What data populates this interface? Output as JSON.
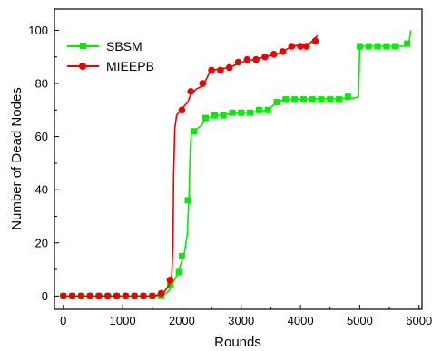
{
  "chart_data": {
    "type": "line",
    "title": "",
    "xlabel": "Rounds",
    "ylabel": "Number of Dead Nodes",
    "xlim": [
      -150,
      6050
    ],
    "ylim": [
      -5,
      108
    ],
    "x_ticks": [
      0,
      1000,
      2000,
      3000,
      4000,
      5000,
      6000
    ],
    "y_ticks": [
      0,
      20,
      40,
      60,
      80,
      100
    ],
    "x_tick_labels": [
      "0",
      "1000",
      "2000",
      "3000",
      "4000",
      "5000",
      "6000"
    ],
    "y_tick_labels": [
      "0",
      "20",
      "40",
      "60",
      "80",
      "100"
    ],
    "grid": false,
    "legend_position": "top-left",
    "series": [
      {
        "name": "SBSM",
        "color": "#00ee00",
        "marker": "square",
        "line": [
          [
            0,
            0
          ],
          [
            1600,
            0
          ],
          [
            1700,
            0.5
          ],
          [
            1780,
            2
          ],
          [
            1850,
            5
          ],
          [
            1920,
            8
          ],
          [
            1980,
            12
          ],
          [
            2040,
            16
          ],
          [
            2090,
            23
          ],
          [
            2120,
            38
          ],
          [
            2140,
            55
          ],
          [
            2160,
            62
          ],
          [
            2260,
            63
          ],
          [
            2320,
            64
          ],
          [
            2380,
            66
          ],
          [
            2420,
            67
          ],
          [
            2600,
            68
          ],
          [
            2800,
            68.5
          ],
          [
            3000,
            69
          ],
          [
            3300,
            69.5
          ],
          [
            3450,
            70
          ],
          [
            3550,
            72
          ],
          [
            3650,
            73
          ],
          [
            3700,
            74
          ],
          [
            4900,
            74.5
          ],
          [
            4980,
            75
          ],
          [
            5000,
            94
          ],
          [
            5780,
            94
          ],
          [
            5830,
            95
          ],
          [
            5860,
            100
          ]
        ],
        "points": [
          [
            0,
            0
          ],
          [
            150,
            0
          ],
          [
            300,
            0
          ],
          [
            450,
            0
          ],
          [
            600,
            0
          ],
          [
            750,
            0
          ],
          [
            900,
            0
          ],
          [
            1050,
            0
          ],
          [
            1200,
            0
          ],
          [
            1350,
            0
          ],
          [
            1500,
            0
          ],
          [
            1650,
            0
          ],
          [
            1800,
            4
          ],
          [
            1950,
            9
          ],
          [
            2000,
            15
          ],
          [
            2100,
            36
          ],
          [
            2200,
            62
          ],
          [
            2400,
            67
          ],
          [
            2550,
            68
          ],
          [
            2700,
            68
          ],
          [
            2850,
            69
          ],
          [
            3000,
            69
          ],
          [
            3150,
            69
          ],
          [
            3300,
            70
          ],
          [
            3450,
            70
          ],
          [
            3600,
            73
          ],
          [
            3750,
            74
          ],
          [
            3900,
            74
          ],
          [
            4050,
            74
          ],
          [
            4200,
            74
          ],
          [
            4350,
            74
          ],
          [
            4500,
            74
          ],
          [
            4650,
            74
          ],
          [
            4800,
            75
          ],
          [
            5000,
            94
          ],
          [
            5150,
            94
          ],
          [
            5300,
            94
          ],
          [
            5450,
            94
          ],
          [
            5600,
            94
          ],
          [
            5800,
            95
          ]
        ]
      },
      {
        "name": "MIEEPB",
        "color": "#ee0000",
        "marker": "circle",
        "line": [
          [
            0,
            0
          ],
          [
            1500,
            0
          ],
          [
            1600,
            0.5
          ],
          [
            1700,
            1.5
          ],
          [
            1780,
            4
          ],
          [
            1830,
            8
          ],
          [
            1850,
            20
          ],
          [
            1860,
            45
          ],
          [
            1880,
            63
          ],
          [
            1910,
            68
          ],
          [
            1980,
            70
          ],
          [
            2100,
            73
          ],
          [
            2150,
            76
          ],
          [
            2250,
            78
          ],
          [
            2350,
            79
          ],
          [
            2420,
            82
          ],
          [
            2460,
            84
          ],
          [
            2500,
            85
          ],
          [
            2800,
            86
          ],
          [
            3000,
            88
          ],
          [
            3200,
            89
          ],
          [
            3400,
            90
          ],
          [
            3600,
            91
          ],
          [
            3700,
            92
          ],
          [
            3850,
            94
          ],
          [
            4000,
            94.5
          ],
          [
            4150,
            95
          ],
          [
            4200,
            96
          ],
          [
            4240,
            97
          ],
          [
            4290,
            98
          ]
        ],
        "points": [
          [
            0,
            0
          ],
          [
            150,
            0
          ],
          [
            300,
            0
          ],
          [
            450,
            0
          ],
          [
            600,
            0
          ],
          [
            750,
            0
          ],
          [
            900,
            0
          ],
          [
            1050,
            0
          ],
          [
            1200,
            0
          ],
          [
            1350,
            0
          ],
          [
            1500,
            0
          ],
          [
            1650,
            1
          ],
          [
            1800,
            6
          ],
          [
            2000,
            70
          ],
          [
            2150,
            77
          ],
          [
            2350,
            80
          ],
          [
            2500,
            85
          ],
          [
            2650,
            85
          ],
          [
            2800,
            86
          ],
          [
            2950,
            88
          ],
          [
            3100,
            89
          ],
          [
            3250,
            89
          ],
          [
            3400,
            90
          ],
          [
            3550,
            91
          ],
          [
            3700,
            92
          ],
          [
            3850,
            94
          ],
          [
            4000,
            94
          ],
          [
            4100,
            94
          ],
          [
            4250,
            96
          ]
        ]
      }
    ]
  }
}
